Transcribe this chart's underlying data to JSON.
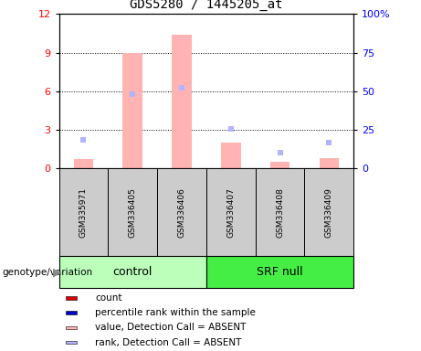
{
  "title": "GDS5280 / 1445205_at",
  "samples": [
    "GSM335971",
    "GSM336405",
    "GSM336406",
    "GSM336407",
    "GSM336408",
    "GSM336409"
  ],
  "pink_bars": [
    0.7,
    9.0,
    10.4,
    2.0,
    0.5,
    0.8
  ],
  "blue_squares_left": [
    2.2,
    5.8,
    6.3,
    3.1,
    1.2,
    2.0
  ],
  "ylim_left": [
    0,
    12
  ],
  "ylim_right": [
    0,
    100
  ],
  "yticks_left": [
    0,
    3,
    6,
    9,
    12
  ],
  "yticks_right": [
    0,
    25,
    50,
    75,
    100
  ],
  "yticklabels_left": [
    "0",
    "3",
    "6",
    "9",
    "12"
  ],
  "yticklabels_right": [
    "0",
    "25",
    "50",
    "75",
    "100%"
  ],
  "bar_width": 0.4,
  "bar_color": "#ffb3b3",
  "square_color": "#b3b3ff",
  "sample_box_color": "#cccccc",
  "control_color": "#bbffbb",
  "srfnull_color": "#44ee44",
  "legend_count_color": "#dd0000",
  "legend_rank_color": "#0000cc",
  "legend_pink_color": "#ffb3b3",
  "legend_blue_color": "#b3b3ff",
  "legend_items": [
    [
      "#dd0000",
      "count"
    ],
    [
      "#0000cc",
      "percentile rank within the sample"
    ],
    [
      "#ffb3b3",
      "value, Detection Call = ABSENT"
    ],
    [
      "#b3b3ff",
      "rank, Detection Call = ABSENT"
    ]
  ]
}
